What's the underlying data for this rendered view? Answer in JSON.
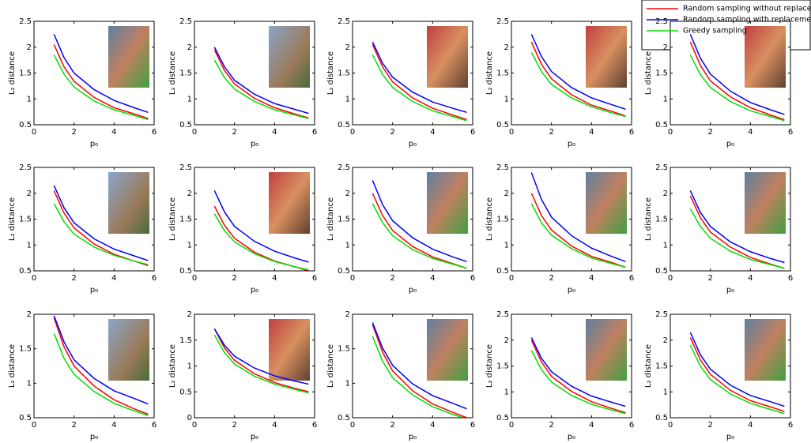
{
  "chart_data": [
    {
      "type": "line",
      "xlabel": "p₀",
      "ylabel": "L₂ distance",
      "xlim": [
        0,
        6
      ],
      "xticks": [
        0,
        2,
        4,
        6
      ],
      "ylim": [
        0.5,
        2.5
      ],
      "yticks": [
        0.5,
        1,
        1.5,
        2,
        2.5
      ],
      "x": [
        1,
        1.5,
        2,
        3,
        4,
        5,
        5.7
      ],
      "series": [
        {
          "name": "Random sampling without replacement",
          "color": "#ff0000",
          "values": [
            2.05,
            1.62,
            1.34,
            1.03,
            0.83,
            0.71,
            0.62
          ]
        },
        {
          "name": "Random sampling with replacement",
          "color": "#0000ff",
          "values": [
            2.25,
            1.8,
            1.5,
            1.18,
            0.97,
            0.83,
            0.74
          ]
        },
        {
          "name": "Greedy sampling",
          "color": "#00e000",
          "values": [
            1.85,
            1.48,
            1.23,
            0.96,
            0.79,
            0.68,
            0.6
          ]
        }
      ]
    },
    {
      "type": "line",
      "xlabel": "p₀",
      "ylabel": "L₂ distance",
      "xlim": [
        0,
        6
      ],
      "xticks": [
        0,
        2,
        4,
        6
      ],
      "ylim": [
        0.5,
        2.5
      ],
      "yticks": [
        0.5,
        1,
        1.5,
        2,
        2.5
      ],
      "x": [
        1,
        1.5,
        2,
        3,
        4,
        5,
        5.7
      ],
      "series": [
        {
          "color": "#ff0000",
          "values": [
            1.95,
            1.55,
            1.29,
            1.01,
            0.83,
            0.71,
            0.63
          ]
        },
        {
          "color": "#0000ff",
          "values": [
            2.0,
            1.62,
            1.36,
            1.09,
            0.91,
            0.8,
            0.72
          ]
        },
        {
          "color": "#00e000",
          "values": [
            1.75,
            1.41,
            1.19,
            0.95,
            0.79,
            0.69,
            0.62
          ]
        }
      ]
    },
    {
      "type": "line",
      "xlabel": "p₀",
      "ylabel": "L₂ distance",
      "xlim": [
        0,
        6
      ],
      "xticks": [
        0,
        2,
        4,
        6
      ],
      "ylim": [
        0.5,
        2.5
      ],
      "yticks": [
        0.5,
        1,
        1.5,
        2,
        2.5
      ],
      "x": [
        1,
        1.5,
        2,
        3,
        4,
        5,
        5.7
      ],
      "series": [
        {
          "color": "#ff0000",
          "values": [
            2.05,
            1.62,
            1.33,
            1.02,
            0.82,
            0.69,
            0.6
          ]
        },
        {
          "color": "#0000ff",
          "values": [
            2.1,
            1.69,
            1.42,
            1.13,
            0.94,
            0.82,
            0.74
          ]
        },
        {
          "color": "#00e000",
          "values": [
            1.85,
            1.47,
            1.22,
            0.95,
            0.77,
            0.66,
            0.58
          ]
        }
      ]
    },
    {
      "type": "line",
      "xlabel": "p₀",
      "ylabel": "L₂ distance",
      "xlim": [
        0,
        6
      ],
      "xticks": [
        0,
        2,
        4,
        6
      ],
      "ylim": [
        0.5,
        2.5
      ],
      "yticks": [
        0.5,
        1,
        1.5,
        2,
        2.5
      ],
      "x": [
        1,
        1.5,
        2,
        3,
        4,
        5,
        5.7
      ],
      "series": [
        {
          "color": "#ff0000",
          "values": [
            2.1,
            1.67,
            1.39,
            1.08,
            0.88,
            0.76,
            0.67
          ]
        },
        {
          "color": "#0000ff",
          "values": [
            2.25,
            1.82,
            1.53,
            1.22,
            1.02,
            0.89,
            0.8
          ]
        },
        {
          "color": "#00e000",
          "values": [
            1.9,
            1.53,
            1.28,
            1.02,
            0.85,
            0.73,
            0.66
          ]
        }
      ]
    },
    {
      "type": "line",
      "xlabel": "p₀",
      "ylabel": "L₂ distance",
      "xlim": [
        0,
        6
      ],
      "xticks": [
        0,
        2,
        4,
        6
      ],
      "ylim": [
        0.5,
        2.5
      ],
      "yticks": [
        0.5,
        1,
        1.5,
        2,
        2.5
      ],
      "x": [
        1,
        1.5,
        2,
        3,
        4,
        5,
        5.7
      ],
      "series": [
        {
          "color": "#ff0000",
          "values": [
            2.1,
            1.65,
            1.35,
            1.04,
            0.83,
            0.69,
            0.6
          ]
        },
        {
          "color": "#0000ff",
          "values": [
            2.25,
            1.79,
            1.48,
            1.15,
            0.93,
            0.79,
            0.7
          ]
        },
        {
          "color": "#00e000",
          "values": [
            1.85,
            1.47,
            1.22,
            0.95,
            0.77,
            0.66,
            0.58
          ]
        }
      ]
    },
    {
      "type": "line",
      "xlabel": "p₀",
      "ylabel": "L₂ distance",
      "xlim": [
        0,
        6
      ],
      "xticks": [
        0,
        2,
        4,
        6
      ],
      "ylim": [
        0.5,
        2.5
      ],
      "yticks": [
        0.5,
        1,
        1.5,
        2,
        2.5
      ],
      "x": [
        1,
        1.5,
        2,
        3,
        4,
        5,
        5.7
      ],
      "series": [
        {
          "color": "#ff0000",
          "values": [
            2.05,
            1.62,
            1.33,
            1.02,
            0.82,
            0.69,
            0.6
          ]
        },
        {
          "color": "#0000ff",
          "values": [
            2.15,
            1.72,
            1.43,
            1.12,
            0.92,
            0.79,
            0.7
          ]
        },
        {
          "color": "#00e000",
          "values": [
            1.8,
            1.45,
            1.21,
            0.96,
            0.8,
            0.69,
            0.62
          ]
        }
      ]
    },
    {
      "type": "line",
      "xlabel": "p₀",
      "ylabel": "L₂ distance",
      "xlim": [
        0,
        6
      ],
      "xticks": [
        0,
        2,
        4,
        6
      ],
      "ylim": [
        0.5,
        2.5
      ],
      "yticks": [
        0.5,
        1,
        1.5,
        2,
        2.5
      ],
      "x": [
        1,
        1.5,
        2,
        3,
        4,
        5,
        5.7
      ],
      "series": [
        {
          "color": "#ff0000",
          "values": [
            1.75,
            1.38,
            1.13,
            0.86,
            0.69,
            0.58,
            0.5
          ]
        },
        {
          "color": "#0000ff",
          "values": [
            2.05,
            1.64,
            1.36,
            1.07,
            0.88,
            0.75,
            0.67
          ]
        },
        {
          "color": "#00e000",
          "values": [
            1.6,
            1.28,
            1.06,
            0.83,
            0.68,
            0.58,
            0.52
          ]
        }
      ]
    },
    {
      "type": "line",
      "xlabel": "p₀",
      "ylabel": "L₂ distance",
      "xlim": [
        0,
        6
      ],
      "xticks": [
        0,
        2,
        4,
        6
      ],
      "ylim": [
        0.5,
        2.5
      ],
      "yticks": [
        0.5,
        1,
        1.5,
        2,
        2.5
      ],
      "x": [
        1,
        1.5,
        2,
        3,
        4,
        5,
        5.7
      ],
      "series": [
        {
          "color": "#ff0000",
          "values": [
            2.0,
            1.57,
            1.28,
            0.97,
            0.77,
            0.64,
            0.55
          ]
        },
        {
          "color": "#0000ff",
          "values": [
            2.25,
            1.78,
            1.47,
            1.14,
            0.92,
            0.77,
            0.68
          ]
        },
        {
          "color": "#00e000",
          "values": [
            1.8,
            1.43,
            1.18,
            0.91,
            0.74,
            0.63,
            0.55
          ]
        }
      ]
    },
    {
      "type": "line",
      "xlabel": "p₀",
      "ylabel": "L₂ distance",
      "xlim": [
        0,
        6
      ],
      "xticks": [
        0,
        2,
        4,
        6
      ],
      "ylim": [
        0.5,
        2.5
      ],
      "yticks": [
        0.5,
        1,
        1.5,
        2,
        2.5
      ],
      "x": [
        1,
        1.5,
        2,
        3,
        4,
        5,
        5.7
      ],
      "series": [
        {
          "color": "#ff0000",
          "values": [
            2.0,
            1.57,
            1.29,
            0.98,
            0.78,
            0.66,
            0.57
          ]
        },
        {
          "color": "#0000ff",
          "values": [
            2.4,
            1.88,
            1.54,
            1.18,
            0.94,
            0.78,
            0.68
          ]
        },
        {
          "color": "#00e000",
          "values": [
            1.8,
            1.43,
            1.19,
            0.93,
            0.75,
            0.64,
            0.57
          ]
        }
      ]
    },
    {
      "type": "line",
      "xlabel": "p₀",
      "ylabel": "L₂ distance",
      "xlim": [
        0,
        6
      ],
      "xticks": [
        0,
        2,
        4,
        6
      ],
      "ylim": [
        0.5,
        2.5
      ],
      "yticks": [
        0.5,
        1,
        1.5,
        2,
        2.5
      ],
      "x": [
        1,
        1.5,
        2,
        3,
        4,
        5,
        5.7
      ],
      "series": [
        {
          "color": "#ff0000",
          "values": [
            1.95,
            1.53,
            1.25,
            0.96,
            0.76,
            0.63,
            0.55
          ]
        },
        {
          "color": "#0000ff",
          "values": [
            2.05,
            1.63,
            1.36,
            1.06,
            0.87,
            0.74,
            0.66
          ]
        },
        {
          "color": "#00e000",
          "values": [
            1.7,
            1.36,
            1.13,
            0.88,
            0.72,
            0.62,
            0.55
          ]
        }
      ]
    },
    {
      "type": "line",
      "xlabel": "p₀",
      "ylabel": "L₂ distance",
      "xlim": [
        0,
        6
      ],
      "xticks": [
        0,
        2,
        4,
        6
      ],
      "ylim": [
        0.5,
        2
      ],
      "yticks": [
        0.5,
        1,
        1.5,
        2
      ],
      "x": [
        1,
        1.5,
        2,
        3,
        4,
        5,
        5.7
      ],
      "series": [
        {
          "color": "#ff0000",
          "values": [
            1.95,
            1.53,
            1.25,
            0.96,
            0.76,
            0.63,
            0.55
          ]
        },
        {
          "color": "#0000ff",
          "values": [
            1.98,
            1.6,
            1.34,
            1.07,
            0.89,
            0.78,
            0.7
          ]
        },
        {
          "color": "#00e000",
          "values": [
            1.72,
            1.36,
            1.13,
            0.88,
            0.71,
            0.6,
            0.53
          ]
        }
      ]
    },
    {
      "type": "line",
      "xlabel": "p₀",
      "ylabel": "L₂ distance",
      "xlim": [
        0,
        6
      ],
      "xticks": [
        0,
        2,
        4,
        6
      ],
      "ylim": [
        0,
        2
      ],
      "yticks": [
        0,
        0.5,
        1,
        1.5,
        2
      ],
      "x": [
        1,
        1.5,
        2,
        3,
        4,
        5,
        5.7
      ],
      "series": [
        {
          "color": "#ff0000",
          "values": [
            1.72,
            1.35,
            1.11,
            0.85,
            0.68,
            0.57,
            0.5
          ]
        },
        {
          "color": "#0000ff",
          "values": [
            1.72,
            1.4,
            1.19,
            0.96,
            0.81,
            0.71,
            0.65
          ]
        },
        {
          "color": "#00e000",
          "values": [
            1.6,
            1.26,
            1.04,
            0.8,
            0.65,
            0.55,
            0.48
          ]
        }
      ]
    },
    {
      "type": "line",
      "xlabel": "p₀",
      "ylabel": "L₂ distance",
      "xlim": [
        0,
        6
      ],
      "xticks": [
        0,
        2,
        4,
        6
      ],
      "ylim": [
        0.5,
        2
      ],
      "yticks": [
        0.5,
        1,
        1.5,
        2
      ],
      "x": [
        1,
        1.5,
        2,
        3,
        4,
        5,
        5.7
      ],
      "series": [
        {
          "color": "#ff0000",
          "values": [
            1.85,
            1.45,
            1.18,
            0.89,
            0.7,
            0.58,
            0.5
          ]
        },
        {
          "color": "#0000ff",
          "values": [
            1.88,
            1.51,
            1.26,
            0.99,
            0.82,
            0.71,
            0.63
          ]
        },
        {
          "color": "#00e000",
          "values": [
            1.68,
            1.32,
            1.08,
            0.83,
            0.66,
            0.55,
            0.48
          ]
        }
      ]
    },
    {
      "type": "line",
      "xlabel": "p₀",
      "ylabel": "L₂ distance",
      "xlim": [
        0,
        6
      ],
      "xticks": [
        0,
        2,
        4,
        6
      ],
      "ylim": [
        0.5,
        2.5
      ],
      "yticks": [
        0.5,
        1,
        1.5,
        2,
        2.5
      ],
      "x": [
        1,
        1.5,
        2,
        3,
        4,
        5,
        5.7
      ],
      "series": [
        {
          "color": "#ff0000",
          "values": [
            2.0,
            1.58,
            1.3,
            1.01,
            0.81,
            0.68,
            0.6
          ]
        },
        {
          "color": "#0000ff",
          "values": [
            2.05,
            1.65,
            1.39,
            1.11,
            0.92,
            0.8,
            0.72
          ]
        },
        {
          "color": "#00e000",
          "values": [
            1.8,
            1.43,
            1.19,
            0.93,
            0.76,
            0.65,
            0.58
          ]
        }
      ]
    },
    {
      "type": "line",
      "xlabel": "p₀",
      "ylabel": "L₂ distance",
      "xlim": [
        0,
        6
      ],
      "xticks": [
        0,
        2,
        4,
        6
      ],
      "ylim": [
        0.5,
        2.5
      ],
      "yticks": [
        0.5,
        1,
        1.5,
        2,
        2.5
      ],
      "x": [
        1,
        1.5,
        2,
        3,
        4,
        5,
        5.7
      ],
      "series": [
        {
          "color": "#ff0000",
          "values": [
            2.05,
            1.62,
            1.34,
            1.03,
            0.83,
            0.71,
            0.62
          ]
        },
        {
          "color": "#0000ff",
          "values": [
            2.15,
            1.72,
            1.44,
            1.13,
            0.93,
            0.81,
            0.72
          ]
        },
        {
          "color": "#00e000",
          "values": [
            1.9,
            1.5,
            1.24,
            0.96,
            0.78,
            0.66,
            0.58
          ]
        }
      ]
    }
  ]
}
